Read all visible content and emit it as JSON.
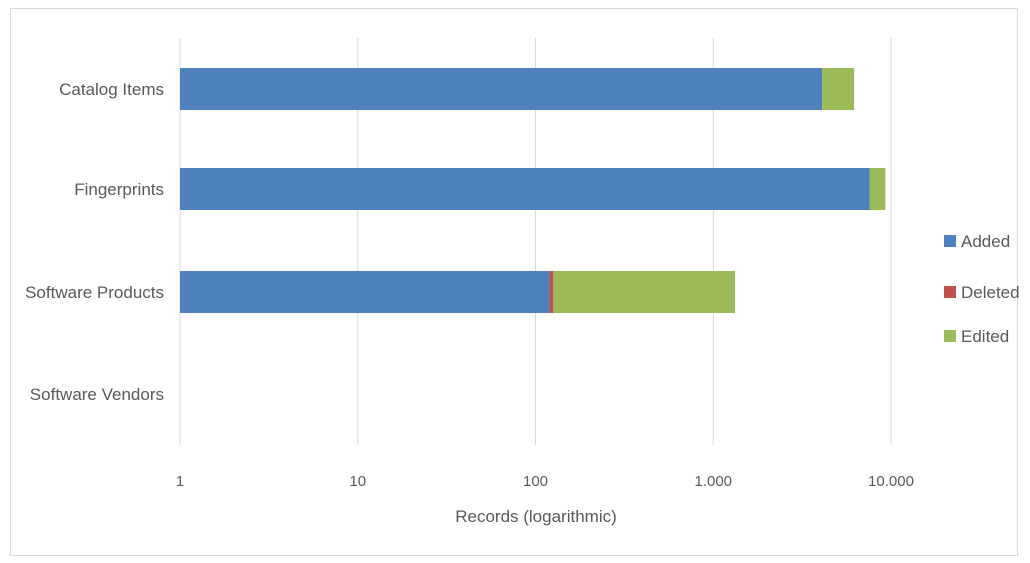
{
  "chart_data": {
    "type": "bar",
    "orientation": "horizontal",
    "stacked": true,
    "x_scale": "log10",
    "xlim": [
      1,
      10000
    ],
    "x_ticks": [
      1,
      10,
      100,
      1000,
      10000
    ],
    "x_tick_labels": [
      "1",
      "10",
      "100",
      "1.000",
      "10.000"
    ],
    "xlabel": "Records (logarithmic)",
    "ylabel": "",
    "title": "",
    "grid": "vertical",
    "legend_position": "right",
    "categories": [
      "Catalog Items",
      "Fingerprints",
      "Software Products",
      "Software Vendors"
    ],
    "series": [
      {
        "name": "Added",
        "color": "#4f81bd",
        "values": [
          4100,
          7600,
          120,
          0
        ]
      },
      {
        "name": "Deleted",
        "color": "#c0504d",
        "values": [
          0,
          0,
          6,
          0
        ]
      },
      {
        "name": "Edited",
        "color": "#9bbb59",
        "values": [
          2100,
          1700,
          1200,
          0
        ]
      }
    ]
  }
}
